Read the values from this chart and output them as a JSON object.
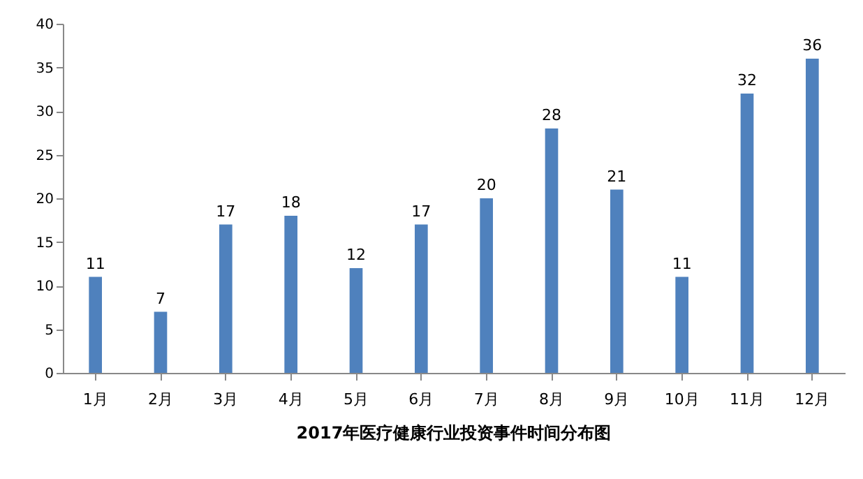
{
  "chart_data": {
    "type": "bar",
    "title": "2017年医疗健康行业投资事件时间分布图",
    "categories": [
      "1月",
      "2月",
      "3月",
      "4月",
      "5月",
      "6月",
      "7月",
      "8月",
      "9月",
      "10月",
      "11月",
      "12月"
    ],
    "values": [
      11,
      7,
      17,
      18,
      12,
      17,
      20,
      28,
      21,
      11,
      32,
      36
    ],
    "color": "#4f81bd",
    "ylim": [
      0,
      40
    ],
    "yticks": [
      0,
      5,
      10,
      15,
      20,
      25,
      30,
      35,
      40
    ],
    "grid": false,
    "data_labels": true
  }
}
